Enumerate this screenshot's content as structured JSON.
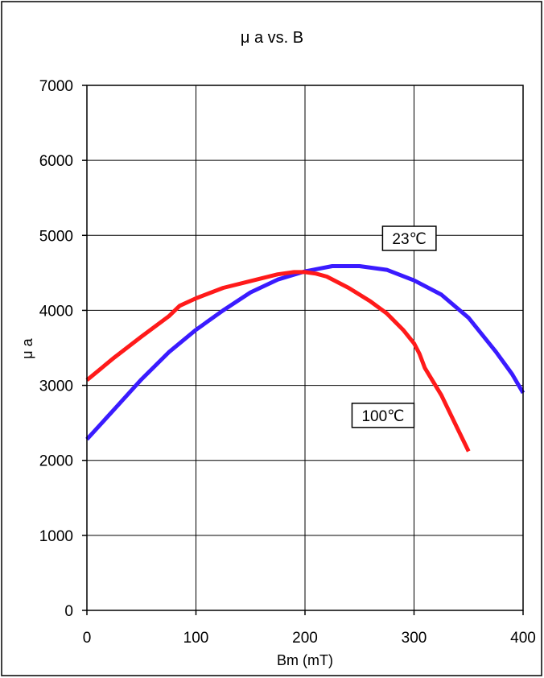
{
  "chart_data": {
    "type": "line",
    "title": "μ a vs. B",
    "xlabel": "Bm (mT)",
    "ylabel": "μ a",
    "xlim": [
      0,
      400
    ],
    "ylim": [
      0,
      7000
    ],
    "xticks": [
      0,
      100,
      200,
      300,
      400
    ],
    "yticks": [
      0,
      1000,
      2000,
      3000,
      4000,
      5000,
      6000,
      7000
    ],
    "grid": true,
    "series": [
      {
        "name": "23℃",
        "color": "#3a1bff",
        "x": [
          0,
          25,
          50,
          75,
          100,
          125,
          150,
          175,
          200,
          225,
          250,
          275,
          300,
          325,
          350,
          375,
          390,
          400
        ],
        "y": [
          2280,
          2680,
          3080,
          3440,
          3740,
          4000,
          4240,
          4410,
          4520,
          4590,
          4590,
          4540,
          4400,
          4210,
          3900,
          3450,
          3150,
          2900
        ]
      },
      {
        "name": "100℃",
        "color": "#ff1a1a",
        "x": [
          0,
          25,
          50,
          75,
          85,
          100,
          125,
          150,
          175,
          190,
          200,
          210,
          220,
          240,
          260,
          275,
          290,
          300,
          305,
          310,
          325,
          340,
          350
        ],
        "y": [
          3070,
          3370,
          3650,
          3920,
          4060,
          4160,
          4300,
          4390,
          4480,
          4510,
          4510,
          4490,
          4450,
          4300,
          4120,
          3960,
          3740,
          3560,
          3420,
          3230,
          2870,
          2420,
          2120
        ]
      }
    ],
    "annotations": [
      {
        "text": "23℃",
        "x": 280,
        "y": 4960
      },
      {
        "text": "100℃",
        "x": 252,
        "y": 2600
      }
    ]
  }
}
